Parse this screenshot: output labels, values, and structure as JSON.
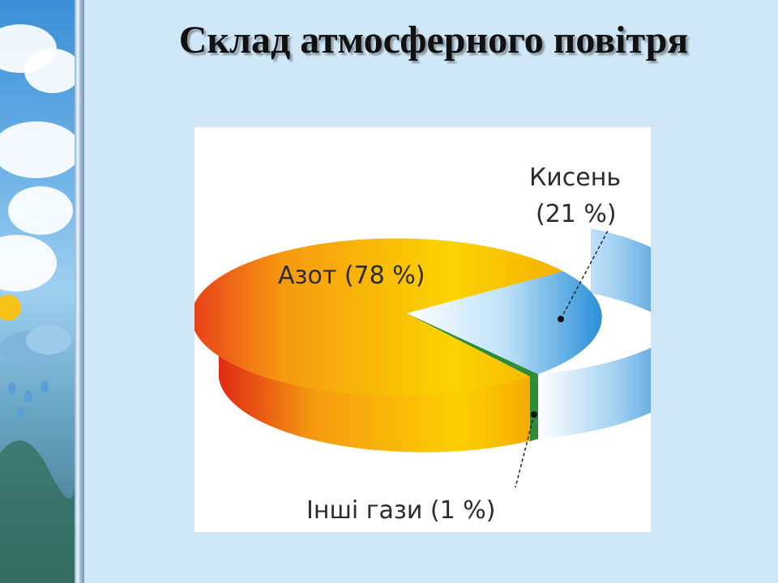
{
  "title": "Склад атмосферного повітря",
  "chart_data": {
    "type": "pie",
    "title": "Склад атмосферного повітря",
    "slices": [
      {
        "name": "Азот",
        "label": "Азот (78 %)",
        "value": 78,
        "color": "#f5b800"
      },
      {
        "name": "Кисень",
        "label_line1": "Кисень",
        "label_line2": "(21 %)",
        "value": 21,
        "color": "#3aa0e0"
      },
      {
        "name": "Інші гази",
        "label": "Інші гази (1 %)",
        "value": 1,
        "color": "#2e8b3a"
      }
    ]
  }
}
